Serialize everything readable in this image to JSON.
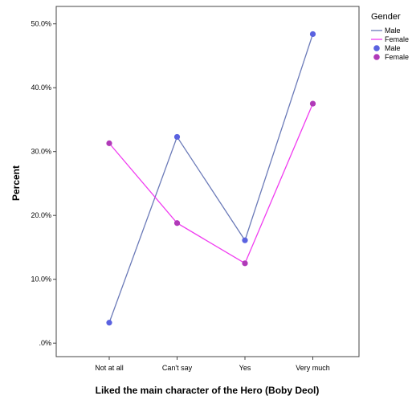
{
  "chart_data": {
    "type": "line",
    "title": "",
    "xlabel": "Liked the main character of the Hero (Boby Deol)",
    "ylabel": "Percent",
    "categories": [
      "Not at all",
      "Can't say",
      "Yes",
      "Very much"
    ],
    "ylim": [
      0,
      52
    ],
    "yticks": [
      0,
      10,
      20,
      30,
      40,
      50
    ],
    "ytick_labels": [
      ".0%",
      "10.0%",
      "20.0%",
      "30.0%",
      "40.0%",
      "50.0%"
    ],
    "grid": false,
    "legend_position": "right",
    "legend": {
      "title": "Gender",
      "line_entries": [
        "Male",
        "Female"
      ],
      "marker_entries": [
        "Male",
        "Female"
      ]
    },
    "series": [
      {
        "name": "Male",
        "values": [
          3.2,
          32.3,
          16.1,
          48.4
        ],
        "line_color": "#6b7ab8",
        "marker_color": "#5a62e0"
      },
      {
        "name": "Female",
        "values": [
          31.3,
          18.8,
          12.5,
          37.5
        ],
        "line_color": "#f03cf0",
        "marker_color": "#b03ab8"
      }
    ]
  }
}
